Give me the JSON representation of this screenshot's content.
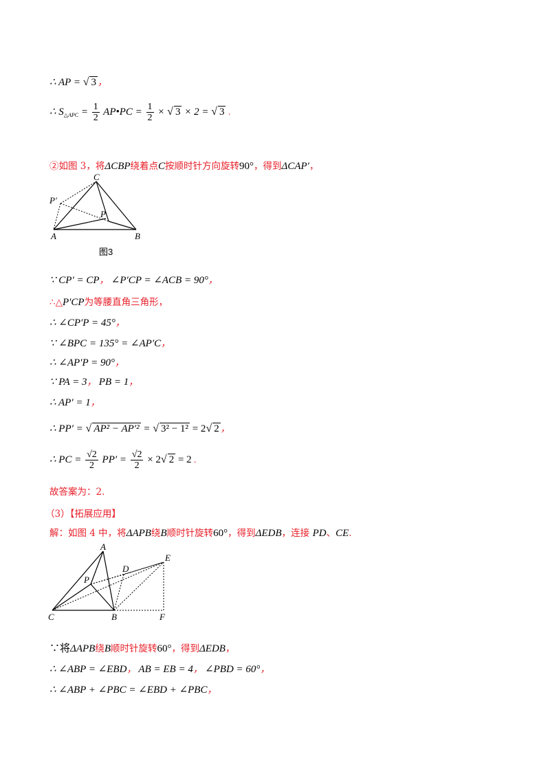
{
  "lines": {
    "l1_pre": "∴ AP = ",
    "l1_rad": "3",
    "l1_punct": "，",
    "l2_pre": "∴ S",
    "l2_sub": "△APC",
    "l2_eq": " = ",
    "l2_num1": "1",
    "l2_den1": "2",
    "l2_mid": "AP•PC = ",
    "l2_num2": "1",
    "l2_den2": "2",
    "l2_times": "× ",
    "l2_rad1": "3",
    "l2_rest": " × 2 = ",
    "l2_rad2": "3",
    "l2_punct": ".",
    "l3_text1": "②如图 3，将",
    "l3_math1": "ΔCBP",
    "l3_text2": "绕着点",
    "l3_math2": "C",
    "l3_text3": "按顺时针方向旋转",
    "l3_math3": "90°",
    "l3_text4": "，得到",
    "l3_math4": "ΔCAP′",
    "l3_punct": "，",
    "fig3_caption": "图3",
    "l4": "∵ CP′ = CP",
    "l4b": "，",
    "l4c": "∠P′CP = ∠ACB = 90°",
    "l4d": "，",
    "l5_a": "∴△",
    "l5_m": "P′CP",
    "l5_b": "为等腰直角三角形，",
    "l6": "∴ ∠CP′P = 45°",
    "l6p": "，",
    "l7": "∵ ∠BPC = 135° = ∠AP′C",
    "l7p": "，",
    "l8": "∴ ∠AP′P = 90°",
    "l8p": "，",
    "l9a": "∵ PA = 3",
    "l9b": "，",
    "l9c": "PB = 1",
    "l9d": "，",
    "l10": "∴ AP′ = 1",
    "l10p": "，",
    "l11_pre": "∴ PP′ = ",
    "l11_rad1": "AP² − AP′²",
    "l11_eq": " = ",
    "l11_rad2": "3² − 1²",
    "l11_rest": " = 2",
    "l11_rad3": "2",
    "l11_punct": "，",
    "l12_pre": "∴ PC = ",
    "l12_num1": "√2",
    "l12_den1": "2",
    "l12_mid": "PP′ = ",
    "l12_num2": "√2",
    "l12_den2": "2",
    "l12_rest": "× 2",
    "l12_rad": "2",
    "l12_end": " = 2",
    "l12_punct": ".",
    "answer": "故答案为：2.",
    "section3": "（3）【拓展应用】",
    "sol_a": "解：如图 4 中，将",
    "sol_m1": "ΔAPB",
    "sol_b": "绕",
    "sol_m2": "B",
    "sol_c": "顺时针旋转",
    "sol_m3": "60°",
    "sol_d": "，得到",
    "sol_m4": "ΔEDB",
    "sol_e": "，连接",
    "sol_m5": "PD",
    "sol_f": "、",
    "sol_m6": "CE",
    "sol_g": ".",
    "b1_a": "∵将",
    "b1_m1": "ΔAPB",
    "b1_b": "绕",
    "b1_m2": "B",
    "b1_c": "顺时针旋转",
    "b1_m3": "60°",
    "b1_d": "，得到",
    "b1_m4": "ΔEDB",
    "b1_e": "，",
    "b2a": "∴ ∠ABP = ∠EBD",
    "b2b": "，",
    "b2c": "AB = EB = 4",
    "b2d": "，",
    "b2e": "∠PBD = 60°",
    "b2f": "，",
    "b3": "∴ ∠ABP + ∠PBC = ∠EBD + ∠PBC",
    "b3p": "，"
  },
  "figure3_labels": {
    "C": "C",
    "P_prime": "P′",
    "P": "P",
    "A": "A",
    "B": "B"
  },
  "figure4_labels": {
    "A": "A",
    "D": "D",
    "E": "E",
    "P": "P",
    "C": "C",
    "B": "B",
    "F": "F"
  }
}
